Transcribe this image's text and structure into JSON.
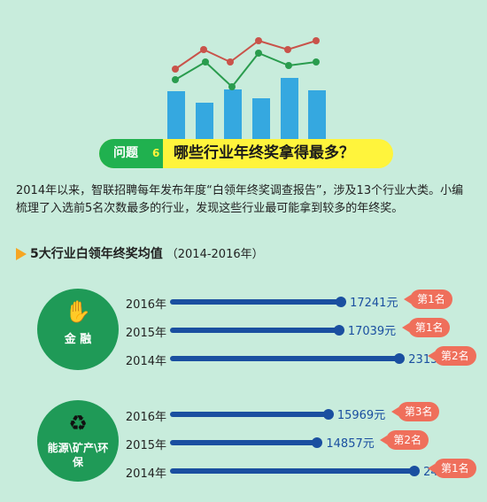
{
  "header": {
    "tag": "问题",
    "number": "6",
    "question": "哪些行业年终奖拿得最多？"
  },
  "intro_text": "2014年以来，智联招聘每年发布年度“白领年终奖调查报告”，涉及13个行业大类。小编梳理了入选前5名次数最多的行业，发现这些行业最可能拿到较多的年终奖。",
  "section": {
    "title": "5大行业白领年终奖均值",
    "subtitle": "（2014-2016年）"
  },
  "colors": {
    "background": "#c8ecdc",
    "bar": "#1a4fa0",
    "badge": "#ef6f5b",
    "circle": "#1f9a57",
    "banner": "#fff43c",
    "deco_bar": "#35a8e0",
    "deco_line_red": "#c9534a",
    "deco_line_green": "#2a9c4e"
  },
  "icons": [
    "coins-hand-icon",
    "recycle-icon"
  ],
  "chart_data": {
    "type": "bar",
    "orientation": "horizontal",
    "unit": "元",
    "groups": [
      {
        "category": "金 融",
        "icon": "coins-hand-icon",
        "rows": [
          {
            "year": "2016年",
            "value": 17241,
            "value_label": "17241元",
            "rank": "第1名"
          },
          {
            "year": "2015年",
            "value": 17039,
            "value_label": "17039元",
            "rank": "第1名"
          },
          {
            "year": "2014年",
            "value": 23151,
            "value_label": "23151元",
            "rank": "第2名"
          }
        ]
      },
      {
        "category": "能源\\矿产\\环保",
        "icon": "recycle-icon",
        "rows": [
          {
            "year": "2016年",
            "value": 15969,
            "value_label": "15969元",
            "rank": "第3名"
          },
          {
            "year": "2015年",
            "value": 14857,
            "value_label": "14857元",
            "rank": "第2名"
          },
          {
            "year": "2014年",
            "value": 24655,
            "value_label": "24655元",
            "rank": "第1名"
          }
        ]
      }
    ]
  }
}
